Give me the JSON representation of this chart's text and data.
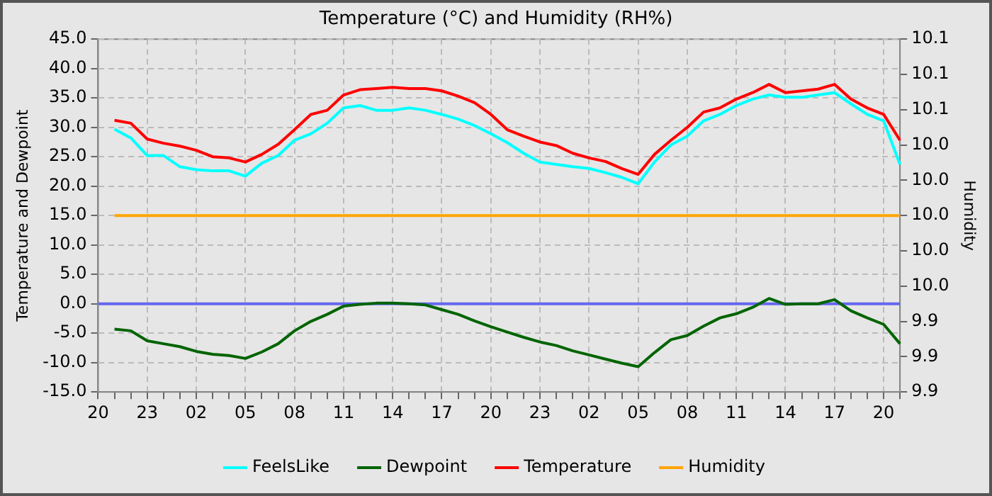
{
  "chart_data": {
    "type": "line",
    "title": "Temperature (°C) and Humidity (RH%)",
    "ylabel": "Temperature and Dewpoint",
    "y2label": "Humidity",
    "categories": [
      "20",
      null,
      null,
      "23",
      null,
      null,
      "02",
      null,
      null,
      "05",
      null,
      null,
      "08",
      null,
      null,
      "11",
      null,
      null,
      "14",
      null,
      null,
      "17",
      null,
      null,
      "20",
      null,
      null,
      "23",
      null,
      null,
      "02",
      null,
      null,
      "05",
      null,
      null,
      "08",
      null,
      null,
      "11",
      null,
      null,
      "14",
      null,
      null,
      "17",
      null,
      null,
      "20",
      null
    ],
    "ylim": [
      -15,
      45
    ],
    "yticks": [
      {
        "value": -15,
        "label": "-15.0"
      },
      {
        "value": -10,
        "label": "-10.0"
      },
      {
        "value": -5,
        "label": "-5.0"
      },
      {
        "value": 0,
        "label": "0.0"
      },
      {
        "value": 5,
        "label": "5.0"
      },
      {
        "value": 10,
        "label": "10.0"
      },
      {
        "value": 15,
        "label": "15.0"
      },
      {
        "value": 20,
        "label": "20.0"
      },
      {
        "value": 25,
        "label": "25.0"
      },
      {
        "value": 30,
        "label": "30.0"
      },
      {
        "value": 35,
        "label": "35.0"
      },
      {
        "value": 40,
        "label": "40.0"
      },
      {
        "value": 45,
        "label": "45.0"
      }
    ],
    "y2lim": [
      9.9,
      10.1
    ],
    "y2ticks": [
      {
        "value": 9.9,
        "label": "9.9"
      },
      {
        "value": 9.92,
        "label": "9.9"
      },
      {
        "value": 9.94,
        "label": "9.9"
      },
      {
        "value": 9.96,
        "label": "10.0"
      },
      {
        "value": 9.98,
        "label": "10.0"
      },
      {
        "value": 10,
        "label": "10.0"
      },
      {
        "value": 10.02,
        "label": "10.0"
      },
      {
        "value": 10.04,
        "label": "10.0"
      },
      {
        "value": 10.06,
        "label": "10.1"
      },
      {
        "value": 10.08,
        "label": "10.1"
      },
      {
        "value": 10.1,
        "label": "10.1"
      }
    ],
    "grid": true,
    "legend": "bottom",
    "marker": "none",
    "line_style": "solid",
    "ref_lines": [
      {
        "axis": "y",
        "value": 0,
        "color": "#6666ee"
      }
    ],
    "series": [
      {
        "name": "FeelsLike",
        "color": "#00ffff",
        "values": [
          null,
          29.7,
          28.2,
          25.2,
          25.2,
          23.3,
          22.8,
          22.6,
          22.6,
          21.7,
          23.9,
          25.2,
          27.8,
          28.9,
          30.7,
          33.3,
          33.7,
          32.9,
          32.9,
          33.3,
          32.9,
          32.2,
          31.4,
          30.3,
          28.9,
          27.4,
          25.6,
          24.1,
          23.7,
          23.3,
          23.0,
          22.3,
          21.5,
          20.4,
          24.1,
          27.0,
          28.5,
          31.1,
          32.2,
          33.7,
          34.8,
          35.5,
          35.1,
          35.1,
          35.5,
          35.9,
          34.0,
          32.2,
          31.1,
          23.7
        ]
      },
      {
        "name": "Dewpoint",
        "color": "#006400",
        "values": [
          null,
          -4.3,
          -4.6,
          -6.3,
          -6.8,
          -7.3,
          -8.1,
          -8.6,
          -8.8,
          -9.3,
          -8.2,
          -6.8,
          -4.6,
          -3.0,
          -1.8,
          -0.4,
          -0.1,
          0.1,
          0.1,
          0.0,
          -0.2,
          -1.0,
          -1.8,
          -2.9,
          -3.9,
          -4.8,
          -5.7,
          -6.5,
          -7.1,
          -8.0,
          -8.7,
          -9.4,
          -10.1,
          -10.7,
          -8.3,
          -6.1,
          -5.4,
          -3.8,
          -2.4,
          -1.7,
          -0.6,
          0.9,
          -0.1,
          0.0,
          0.0,
          0.7,
          -1.2,
          -2.4,
          -3.5,
          -6.8
        ]
      },
      {
        "name": "Temperature",
        "color": "#ff0000",
        "values": [
          null,
          31.2,
          30.7,
          28.0,
          27.3,
          26.8,
          26.1,
          25.0,
          24.8,
          24.1,
          25.4,
          27.1,
          29.6,
          32.2,
          32.9,
          35.5,
          36.4,
          36.6,
          36.8,
          36.6,
          36.6,
          36.2,
          35.3,
          34.2,
          32.2,
          29.6,
          28.5,
          27.5,
          26.9,
          25.6,
          24.8,
          24.2,
          23.0,
          22.0,
          25.4,
          27.8,
          30.0,
          32.6,
          33.3,
          34.8,
          35.9,
          37.3,
          35.9,
          36.2,
          36.5,
          37.3,
          34.8,
          33.3,
          32.2,
          27.8
        ]
      },
      {
        "name": "Humidity",
        "color": "#ffa500",
        "axis": "y2",
        "values": [
          null,
          10,
          10,
          10,
          10,
          10,
          10,
          10,
          10,
          10,
          10,
          10,
          10,
          10,
          10,
          10,
          10,
          10,
          10,
          10,
          10,
          10,
          10,
          10,
          10,
          10,
          10,
          10,
          10,
          10,
          10,
          10,
          10,
          10,
          10,
          10,
          10,
          10,
          10,
          10,
          10,
          10,
          10,
          10,
          10,
          10,
          10,
          10,
          10,
          10
        ]
      }
    ]
  }
}
